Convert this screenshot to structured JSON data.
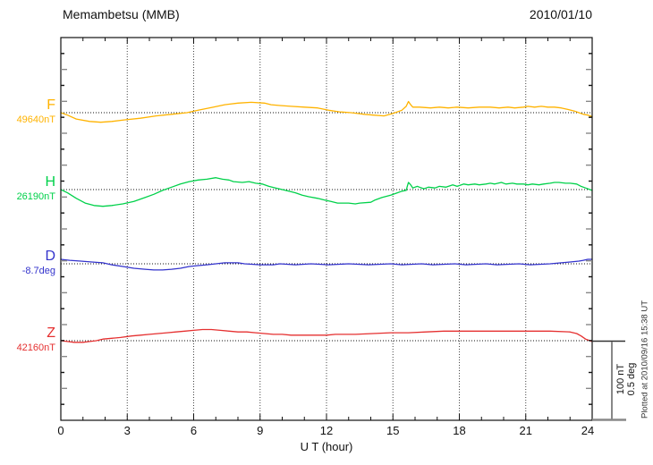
{
  "header": {
    "title": "Memambetsu (MMB)",
    "date": "2010/01/10"
  },
  "axes": {
    "xlabel": "U T (hour)",
    "x_ticks": [
      0,
      3,
      6,
      9,
      12,
      15,
      18,
      21,
      24
    ],
    "x_minor_step_hours": 1,
    "x_grid_step_hours": 3
  },
  "scale_bar": {
    "line1": "100 nT",
    "line2": "0.5 deg"
  },
  "footnote": "Plotted at 2010/09/16 15:38 UT",
  "chart_data": {
    "type": "line",
    "title": "Memambetsu (MMB) geomagnetic field variations",
    "x_unit": "hour (UT)",
    "x_range": [
      0,
      24
    ],
    "grid": "dotted vertical gridlines every 3 h; dotted horizontal baseline per channel",
    "legend_position": "left margin channel labels",
    "scale": "100 nT / 0.5 deg reference bar at lower right",
    "series": [
      {
        "label": "F",
        "baseline_label": "49640nT",
        "baseline_value": 49640,
        "unit": "nT",
        "color": "#FFB300",
        "points": [
          [
            0,
            0
          ],
          [
            0.3,
            -3
          ],
          [
            0.7,
            -8
          ],
          [
            1.3,
            -11
          ],
          [
            1.8,
            -12
          ],
          [
            2.3,
            -11
          ],
          [
            2.9,
            -9
          ],
          [
            3.6,
            -7
          ],
          [
            4.3,
            -4
          ],
          [
            5.0,
            -2
          ],
          [
            5.7,
            0
          ],
          [
            6.2,
            3
          ],
          [
            6.9,
            7
          ],
          [
            7.4,
            10
          ],
          [
            8.0,
            12
          ],
          [
            8.6,
            13
          ],
          [
            9.2,
            12
          ],
          [
            9.5,
            10
          ],
          [
            9.9,
            9
          ],
          [
            10.4,
            8
          ],
          [
            11.0,
            7
          ],
          [
            11.6,
            6
          ],
          [
            12.1,
            3
          ],
          [
            12.6,
            1
          ],
          [
            13.1,
            0
          ],
          [
            13.4,
            -1
          ],
          [
            13.7,
            -2
          ],
          [
            14.1,
            -3
          ],
          [
            14.6,
            -4
          ],
          [
            15.0,
            -1
          ],
          [
            15.4,
            3
          ],
          [
            15.6,
            8
          ],
          [
            15.7,
            14
          ],
          [
            15.8,
            10
          ],
          [
            15.9,
            7
          ],
          [
            16.2,
            7
          ],
          [
            16.7,
            6
          ],
          [
            17.1,
            7
          ],
          [
            17.5,
            6
          ],
          [
            17.9,
            7
          ],
          [
            18.4,
            6
          ],
          [
            18.9,
            7
          ],
          [
            19.4,
            7
          ],
          [
            19.8,
            6
          ],
          [
            20.2,
            7
          ],
          [
            20.5,
            6
          ],
          [
            20.9,
            7
          ],
          [
            21.1,
            8
          ],
          [
            21.4,
            7
          ],
          [
            21.7,
            8
          ],
          [
            22.0,
            7
          ],
          [
            22.3,
            7
          ],
          [
            22.6,
            6
          ],
          [
            22.9,
            4
          ],
          [
            23.2,
            2
          ],
          [
            23.4,
            0
          ],
          [
            23.6,
            -2
          ],
          [
            23.8,
            -3
          ],
          [
            24,
            -5
          ]
        ]
      },
      {
        "label": "H",
        "baseline_label": "26190nT",
        "baseline_value": 26190,
        "unit": "nT",
        "color": "#00D14A",
        "points": [
          [
            0,
            0
          ],
          [
            0.3,
            -4
          ],
          [
            0.7,
            -11
          ],
          [
            1.1,
            -17
          ],
          [
            1.5,
            -20
          ],
          [
            1.9,
            -21
          ],
          [
            2.3,
            -20
          ],
          [
            2.8,
            -18
          ],
          [
            3.3,
            -15
          ],
          [
            3.8,
            -10
          ],
          [
            4.2,
            -6
          ],
          [
            4.6,
            -1
          ],
          [
            5.0,
            3
          ],
          [
            5.4,
            7
          ],
          [
            5.8,
            10
          ],
          [
            6.2,
            12
          ],
          [
            6.6,
            13
          ],
          [
            7.0,
            15
          ],
          [
            7.3,
            13
          ],
          [
            7.6,
            12
          ],
          [
            7.8,
            10
          ],
          [
            8.2,
            9
          ],
          [
            8.5,
            10
          ],
          [
            8.8,
            8
          ],
          [
            9.1,
            7
          ],
          [
            9.4,
            4
          ],
          [
            9.7,
            2
          ],
          [
            10.0,
            0
          ],
          [
            10.3,
            -2
          ],
          [
            10.6,
            -4
          ],
          [
            10.9,
            -7
          ],
          [
            11.2,
            -9
          ],
          [
            11.6,
            -11
          ],
          [
            11.9,
            -13
          ],
          [
            12.2,
            -15
          ],
          [
            12.5,
            -17
          ],
          [
            13.0,
            -17
          ],
          [
            13.3,
            -18
          ],
          [
            13.5,
            -17
          ],
          [
            14.0,
            -16
          ],
          [
            14.2,
            -13
          ],
          [
            14.5,
            -10
          ],
          [
            14.9,
            -7
          ],
          [
            15.2,
            -4
          ],
          [
            15.4,
            -2
          ],
          [
            15.6,
            -1
          ],
          [
            15.65,
            4
          ],
          [
            15.7,
            9
          ],
          [
            15.8,
            6
          ],
          [
            15.9,
            2
          ],
          [
            16.1,
            4
          ],
          [
            16.2,
            3
          ],
          [
            16.4,
            1
          ],
          [
            16.6,
            3
          ],
          [
            16.9,
            2
          ],
          [
            17.1,
            4
          ],
          [
            17.4,
            3
          ],
          [
            17.7,
            6
          ],
          [
            17.9,
            4
          ],
          [
            18.2,
            7
          ],
          [
            18.4,
            6
          ],
          [
            18.7,
            7
          ],
          [
            18.9,
            6
          ],
          [
            19.2,
            7
          ],
          [
            19.4,
            8
          ],
          [
            19.6,
            7
          ],
          [
            19.9,
            9
          ],
          [
            20.1,
            7
          ],
          [
            20.4,
            8
          ],
          [
            20.6,
            7
          ],
          [
            20.9,
            7
          ],
          [
            21.1,
            6
          ],
          [
            21.3,
            7
          ],
          [
            21.6,
            6
          ],
          [
            21.8,
            7
          ],
          [
            22.1,
            8
          ],
          [
            22.3,
            9
          ],
          [
            22.5,
            9
          ],
          [
            22.8,
            8
          ],
          [
            23.0,
            8
          ],
          [
            23.3,
            7
          ],
          [
            23.5,
            4
          ],
          [
            23.7,
            2
          ],
          [
            23.9,
            0
          ],
          [
            24,
            -1
          ]
        ]
      },
      {
        "label": "D",
        "baseline_label": "-8.7deg",
        "baseline_value": -8.7,
        "unit": "deg",
        "color": "#3333CC",
        "points": [
          [
            0,
            0.028
          ],
          [
            0.4,
            0.022
          ],
          [
            0.9,
            0.017
          ],
          [
            1.4,
            0.011
          ],
          [
            1.9,
            0.006
          ],
          [
            2.3,
            -0.006
          ],
          [
            2.8,
            -0.017
          ],
          [
            3.3,
            -0.028
          ],
          [
            3.8,
            -0.034
          ],
          [
            4.2,
            -0.039
          ],
          [
            4.6,
            -0.039
          ],
          [
            5.0,
            -0.034
          ],
          [
            5.4,
            -0.028
          ],
          [
            5.8,
            -0.017
          ],
          [
            6.2,
            -0.011
          ],
          [
            6.6,
            -0.006
          ],
          [
            7.0,
            0
          ],
          [
            7.4,
            0.006
          ],
          [
            8.0,
            0.006
          ],
          [
            8.3,
            0
          ],
          [
            9.0,
            -0.006
          ],
          [
            9.6,
            -0.006
          ],
          [
            9.9,
            0
          ],
          [
            10.6,
            -0.006
          ],
          [
            11.3,
            0
          ],
          [
            12.1,
            -0.006
          ],
          [
            13.0,
            0
          ],
          [
            13.9,
            -0.006
          ],
          [
            14.9,
            0
          ],
          [
            15.4,
            -0.006
          ],
          [
            16.3,
            0
          ],
          [
            16.8,
            -0.006
          ],
          [
            17.8,
            0
          ],
          [
            18.3,
            -0.006
          ],
          [
            19.2,
            0
          ],
          [
            19.7,
            -0.006
          ],
          [
            20.7,
            0
          ],
          [
            21.2,
            -0.006
          ],
          [
            22.1,
            0
          ],
          [
            22.6,
            0.006
          ],
          [
            23.0,
            0.011
          ],
          [
            23.4,
            0.017
          ],
          [
            23.6,
            0.022
          ],
          [
            23.8,
            0.028
          ],
          [
            24,
            0.028
          ]
        ]
      },
      {
        "label": "Z",
        "baseline_label": "42160nT",
        "baseline_value": 42160,
        "unit": "nT",
        "color": "#E53030",
        "points": [
          [
            0,
            0
          ],
          [
            0.3,
            -1
          ],
          [
            0.6,
            -2
          ],
          [
            1.0,
            -2
          ],
          [
            1.3,
            -1
          ],
          [
            1.6,
            0
          ],
          [
            1.9,
            2
          ],
          [
            2.3,
            3
          ],
          [
            2.7,
            4
          ],
          [
            3.2,
            6
          ],
          [
            3.6,
            7
          ],
          [
            4.0,
            8
          ],
          [
            4.4,
            9
          ],
          [
            4.8,
            10
          ],
          [
            5.2,
            11
          ],
          [
            5.6,
            12
          ],
          [
            6.0,
            13
          ],
          [
            6.4,
            14
          ],
          [
            6.8,
            14
          ],
          [
            7.2,
            13
          ],
          [
            7.6,
            12
          ],
          [
            8.0,
            11
          ],
          [
            8.4,
            11
          ],
          [
            8.8,
            10
          ],
          [
            9.2,
            9
          ],
          [
            9.6,
            8
          ],
          [
            10.0,
            8
          ],
          [
            10.4,
            7
          ],
          [
            11.2,
            7
          ],
          [
            12.0,
            7
          ],
          [
            12.4,
            8
          ],
          [
            13.3,
            8
          ],
          [
            14.1,
            9
          ],
          [
            14.9,
            10
          ],
          [
            15.7,
            10
          ],
          [
            16.5,
            11
          ],
          [
            17.3,
            12
          ],
          [
            18.1,
            12
          ],
          [
            18.9,
            12
          ],
          [
            19.7,
            12
          ],
          [
            20.5,
            12
          ],
          [
            21.3,
            12
          ],
          [
            22.1,
            12
          ],
          [
            23.0,
            11
          ],
          [
            23.3,
            9
          ],
          [
            23.5,
            6
          ],
          [
            23.7,
            2
          ],
          [
            23.9,
            0
          ],
          [
            24,
            -1
          ]
        ]
      }
    ]
  }
}
